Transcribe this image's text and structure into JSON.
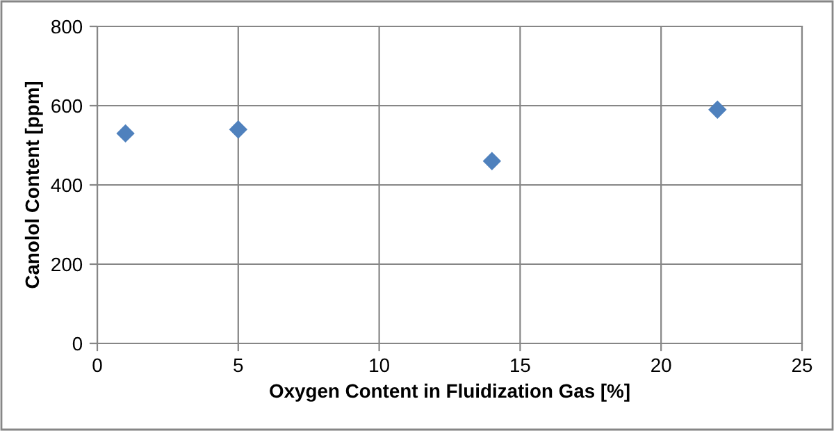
{
  "chart_data": {
    "type": "scatter",
    "xlabel": "Oxygen Content in Fluidization Gas [%]",
    "ylabel": "Canolol Content [ppm]",
    "x": [
      1,
      5,
      14,
      22
    ],
    "values": [
      530,
      540,
      460,
      590
    ],
    "color": "#4f81bd",
    "marker": "diamond",
    "xlim": [
      0,
      25
    ],
    "xticks": [
      0,
      5,
      10,
      15,
      20,
      25
    ],
    "ylim": [
      0,
      800
    ],
    "yticks": [
      0,
      200,
      400,
      600,
      800
    ],
    "grid": true
  }
}
